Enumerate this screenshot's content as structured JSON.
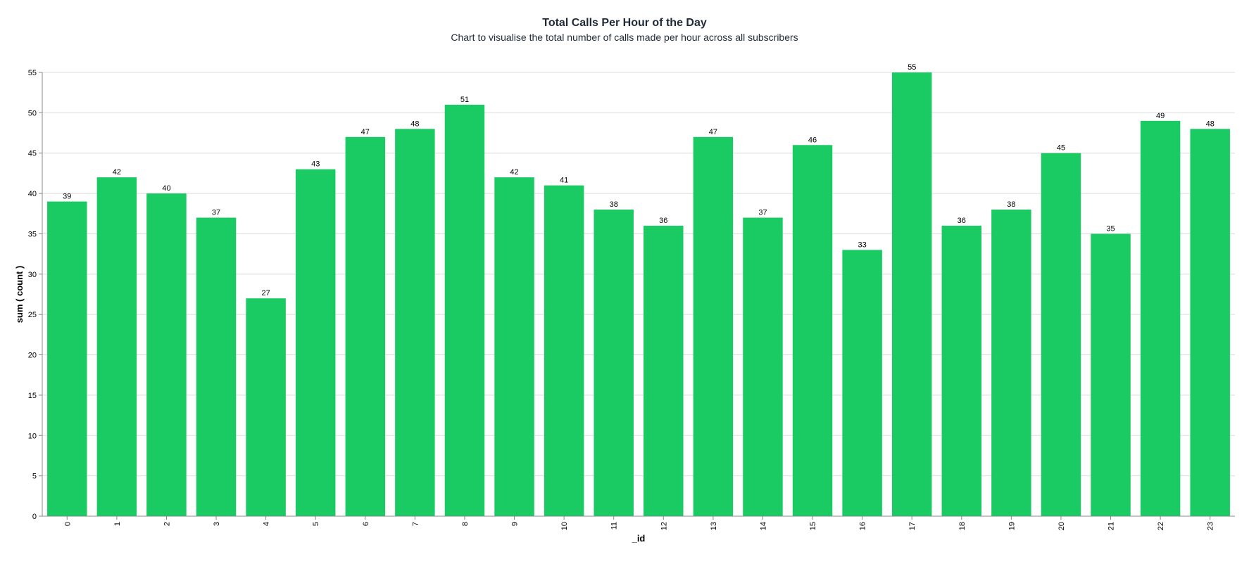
{
  "chart_data": {
    "type": "bar",
    "title": "Total Calls Per Hour of the Day",
    "subtitle": "Chart to visualise the total number of calls made per hour across all subscribers",
    "xlabel": "_id",
    "ylabel": "sum ( count )",
    "categories": [
      "0",
      "1",
      "2",
      "3",
      "4",
      "5",
      "6",
      "7",
      "8",
      "9",
      "10",
      "11",
      "12",
      "13",
      "14",
      "15",
      "16",
      "17",
      "18",
      "19",
      "20",
      "21",
      "22",
      "23"
    ],
    "values": [
      39,
      42,
      40,
      37,
      27,
      43,
      47,
      48,
      51,
      42,
      41,
      38,
      36,
      47,
      37,
      46,
      33,
      55,
      36,
      38,
      45,
      35,
      49,
      48
    ],
    "ylim": [
      0,
      55
    ],
    "yticks": [
      0,
      5,
      10,
      15,
      20,
      25,
      30,
      35,
      40,
      45,
      50,
      55
    ],
    "grid": true,
    "bar_color": "#19cb62",
    "data_labels": true
  }
}
